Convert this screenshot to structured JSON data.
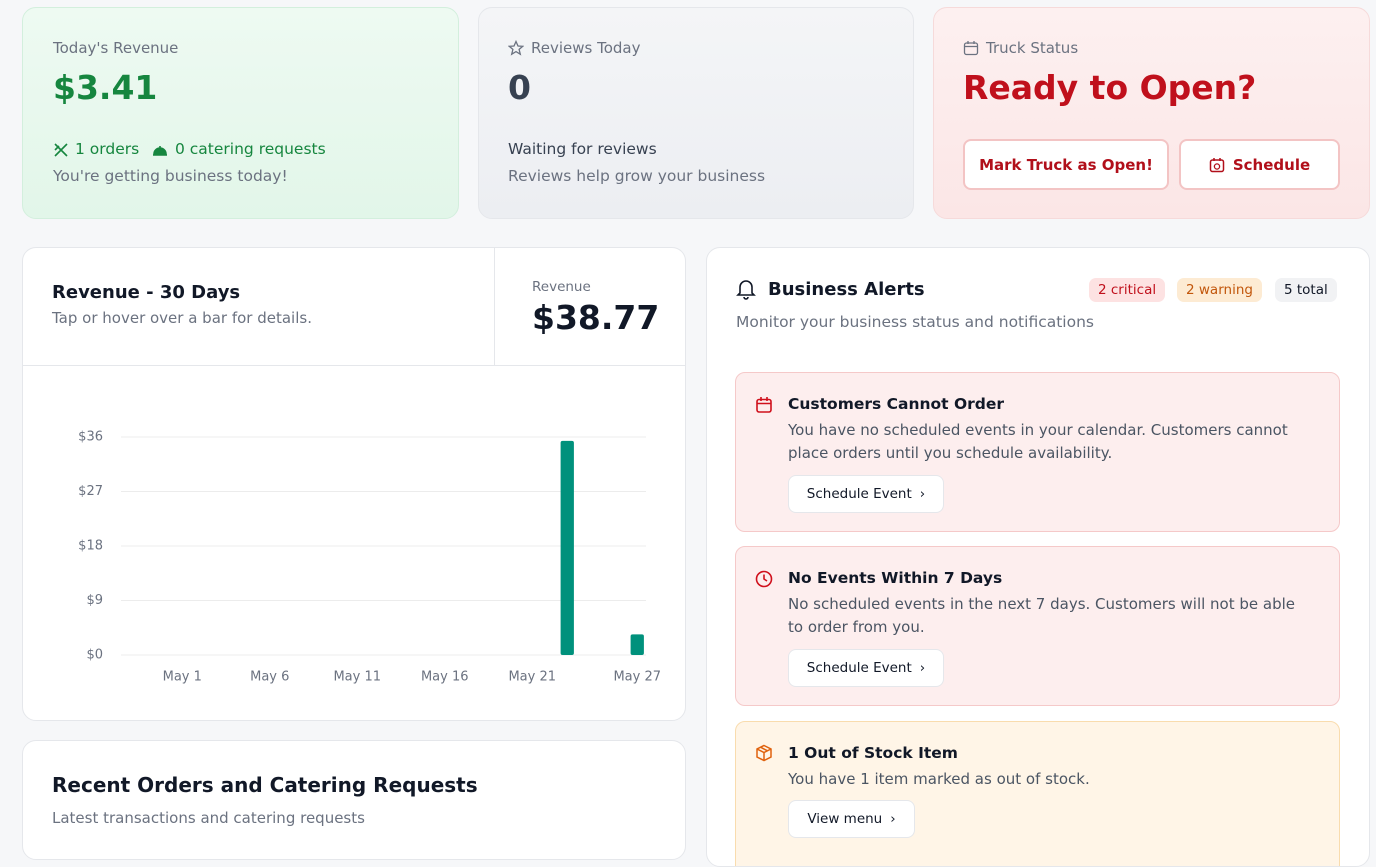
{
  "revenue_card": {
    "label": "Today's Revenue",
    "value": "$3.41",
    "orders": "1 orders",
    "catering": "0 catering requests",
    "note": "You're getting business today!"
  },
  "reviews_card": {
    "label": "Reviews Today",
    "value": "0",
    "status": "Waiting for reviews",
    "note": "Reviews help grow your business"
  },
  "truck_card": {
    "label": "Truck Status",
    "value": "Ready to Open?",
    "buttons": [
      "Mark Truck as Open!",
      "Schedule"
    ]
  },
  "revenue_panel": {
    "title": "Revenue - 30 Days",
    "subtitle": "Tap or hover over a bar for details.",
    "total_label": "Revenue",
    "total": "$38.77"
  },
  "chart_data": {
    "type": "bar",
    "categories": [
      null,
      null,
      null,
      "May 1",
      null,
      null,
      null,
      null,
      "May 6",
      null,
      null,
      null,
      null,
      "May 11",
      null,
      null,
      null,
      null,
      "May 16",
      null,
      null,
      null,
      null,
      "May 21",
      null,
      null,
      null,
      null,
      null,
      "May 27"
    ],
    "values": [
      0,
      0,
      0,
      0,
      0,
      0,
      0,
      0,
      0,
      0,
      0,
      0,
      0,
      0,
      0,
      0,
      0,
      0,
      0,
      0,
      0,
      0,
      0,
      0,
      0,
      35.36,
      0,
      0,
      0,
      3.41
    ],
    "color": "#00917c",
    "ylim": [
      0,
      36
    ],
    "yticks": [
      {
        "value": 0,
        "label": "$0"
      },
      {
        "value": 9,
        "label": "$9"
      },
      {
        "value": 18,
        "label": "$18"
      },
      {
        "value": 27,
        "label": "$27"
      },
      {
        "value": 36,
        "label": "$36"
      }
    ],
    "grid": true
  },
  "alerts_panel": {
    "title": "Business Alerts",
    "badges": [
      "2 critical",
      "2 warning",
      "5 total"
    ],
    "subtitle": "Monitor your business status and notifications",
    "alerts": [
      {
        "title": "Customers Cannot Order",
        "text": "You have no scheduled events in your calendar. Customers cannot place orders until you schedule availability.",
        "action": "Schedule Event"
      },
      {
        "title": "No Events Within 7 Days",
        "text": "No scheduled events in the next 7 days. Customers will not be able to order from you.",
        "action": "Schedule Event"
      },
      {
        "title": "1 Out of Stock Item",
        "text": "You have 1 item marked as out of stock.",
        "action": "View menu"
      }
    ]
  },
  "orders_panel": {
    "title": "Recent Orders and Catering Requests",
    "subtitle": "Latest transactions and catering requests"
  }
}
